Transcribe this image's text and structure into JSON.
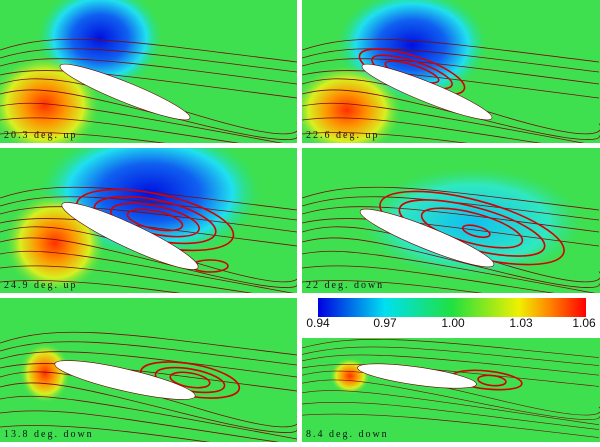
{
  "panels": [
    {
      "label": "20.3 deg. up"
    },
    {
      "label": "22.6 deg. up"
    },
    {
      "label": "24.9 deg. up"
    },
    {
      "label": "22 deg. down"
    },
    {
      "label": "13.8 deg. down"
    },
    {
      "label": "8.4 deg. down"
    }
  ],
  "colorbar": {
    "ticks": [
      "0.94",
      "0.97",
      "1.00",
      "1.03",
      "1.06"
    ]
  }
}
